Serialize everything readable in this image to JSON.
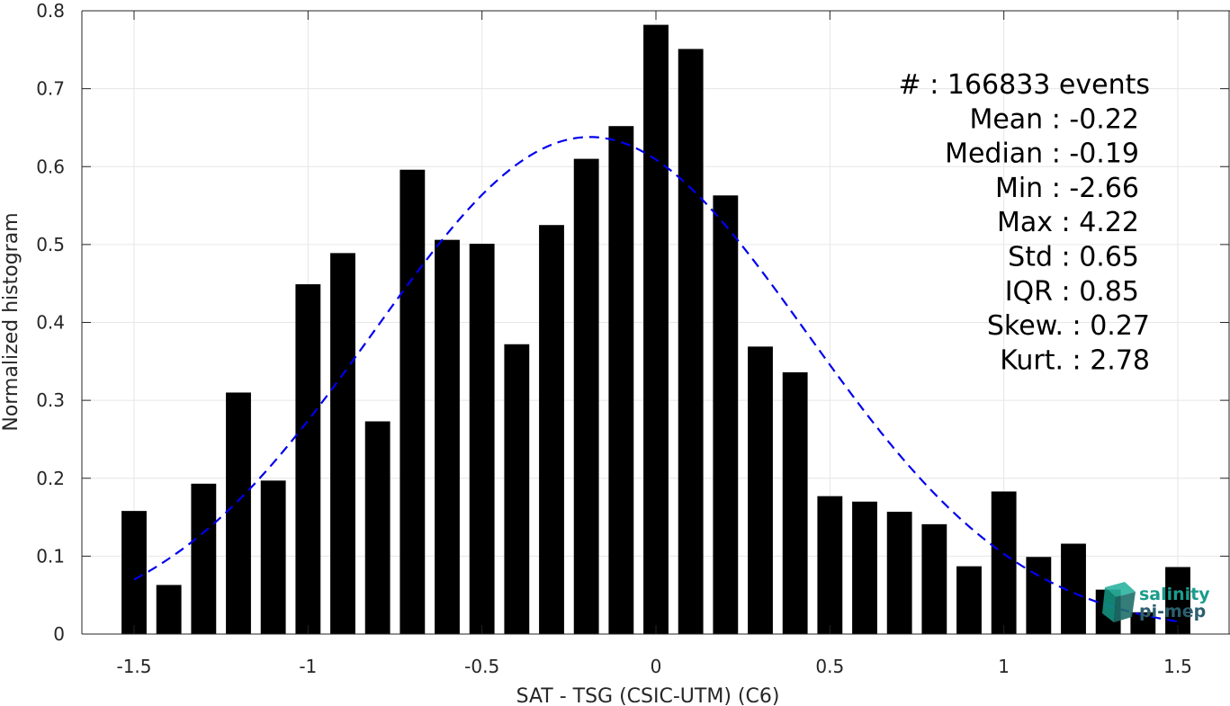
{
  "chart_data": {
    "type": "bar",
    "xlabel": "SAT - TSG (CSIC-UTM) (C6)",
    "ylabel": "Normalized histogram",
    "xlim": [
      -1.65,
      1.65
    ],
    "ylim": [
      0,
      0.8
    ],
    "xticks": [
      -1.5,
      -1,
      -0.5,
      0,
      0.5,
      1,
      1.5
    ],
    "xtick_labels": [
      "-1.5",
      "-1",
      "-0.5",
      "0",
      "0.5",
      "1",
      "1.5"
    ],
    "yticks": [
      0,
      0.1,
      0.2,
      0.3,
      0.4,
      0.5,
      0.6,
      0.7,
      0.8
    ],
    "ytick_labels": [
      "0",
      "0.1",
      "0.2",
      "0.3",
      "0.4",
      "0.5",
      "0.6",
      "0.7",
      "0.8"
    ],
    "grid": true,
    "bar_color": "#000000",
    "bin_centers": [
      -1.5,
      -1.4,
      -1.3,
      -1.2,
      -1.1,
      -1.0,
      -0.9,
      -0.8,
      -0.7,
      -0.6,
      -0.5,
      -0.4,
      -0.3,
      -0.2,
      -0.1,
      0.0,
      0.1,
      0.2,
      0.3,
      0.4,
      0.5,
      0.6,
      0.7,
      0.8,
      0.9,
      1.0,
      1.1,
      1.2,
      1.3,
      1.4,
      1.5
    ],
    "values": [
      0.158,
      0.063,
      0.193,
      0.31,
      0.197,
      0.449,
      0.489,
      0.273,
      0.596,
      0.506,
      0.501,
      0.372,
      0.525,
      0.61,
      0.652,
      0.782,
      0.751,
      0.563,
      0.369,
      0.336,
      0.177,
      0.17,
      0.157,
      0.141,
      0.087,
      0.183,
      0.099,
      0.116,
      0.057,
      0.028,
      0.086
    ],
    "fit_curve": {
      "type": "gaussian",
      "style": "dashed",
      "color": "#0000ee",
      "mean": -0.19,
      "std": 0.623,
      "peak": 0.638,
      "x_range": [
        -1.5,
        1.5
      ]
    },
    "stats": [
      "#  : 166833 events",
      "Mean : -0.22",
      "Median : -0.19",
      "Min : -2.66",
      "Max : 4.22",
      "Std : 0.65",
      "IQR : 0.85",
      "Skew. : 0.27",
      "Kurt. : 2.78"
    ]
  },
  "logo": {
    "line1": "salinity",
    "line2": "pi-mep",
    "colors": [
      "#1a9c8c",
      "#16a085",
      "#2c5f6e"
    ]
  }
}
